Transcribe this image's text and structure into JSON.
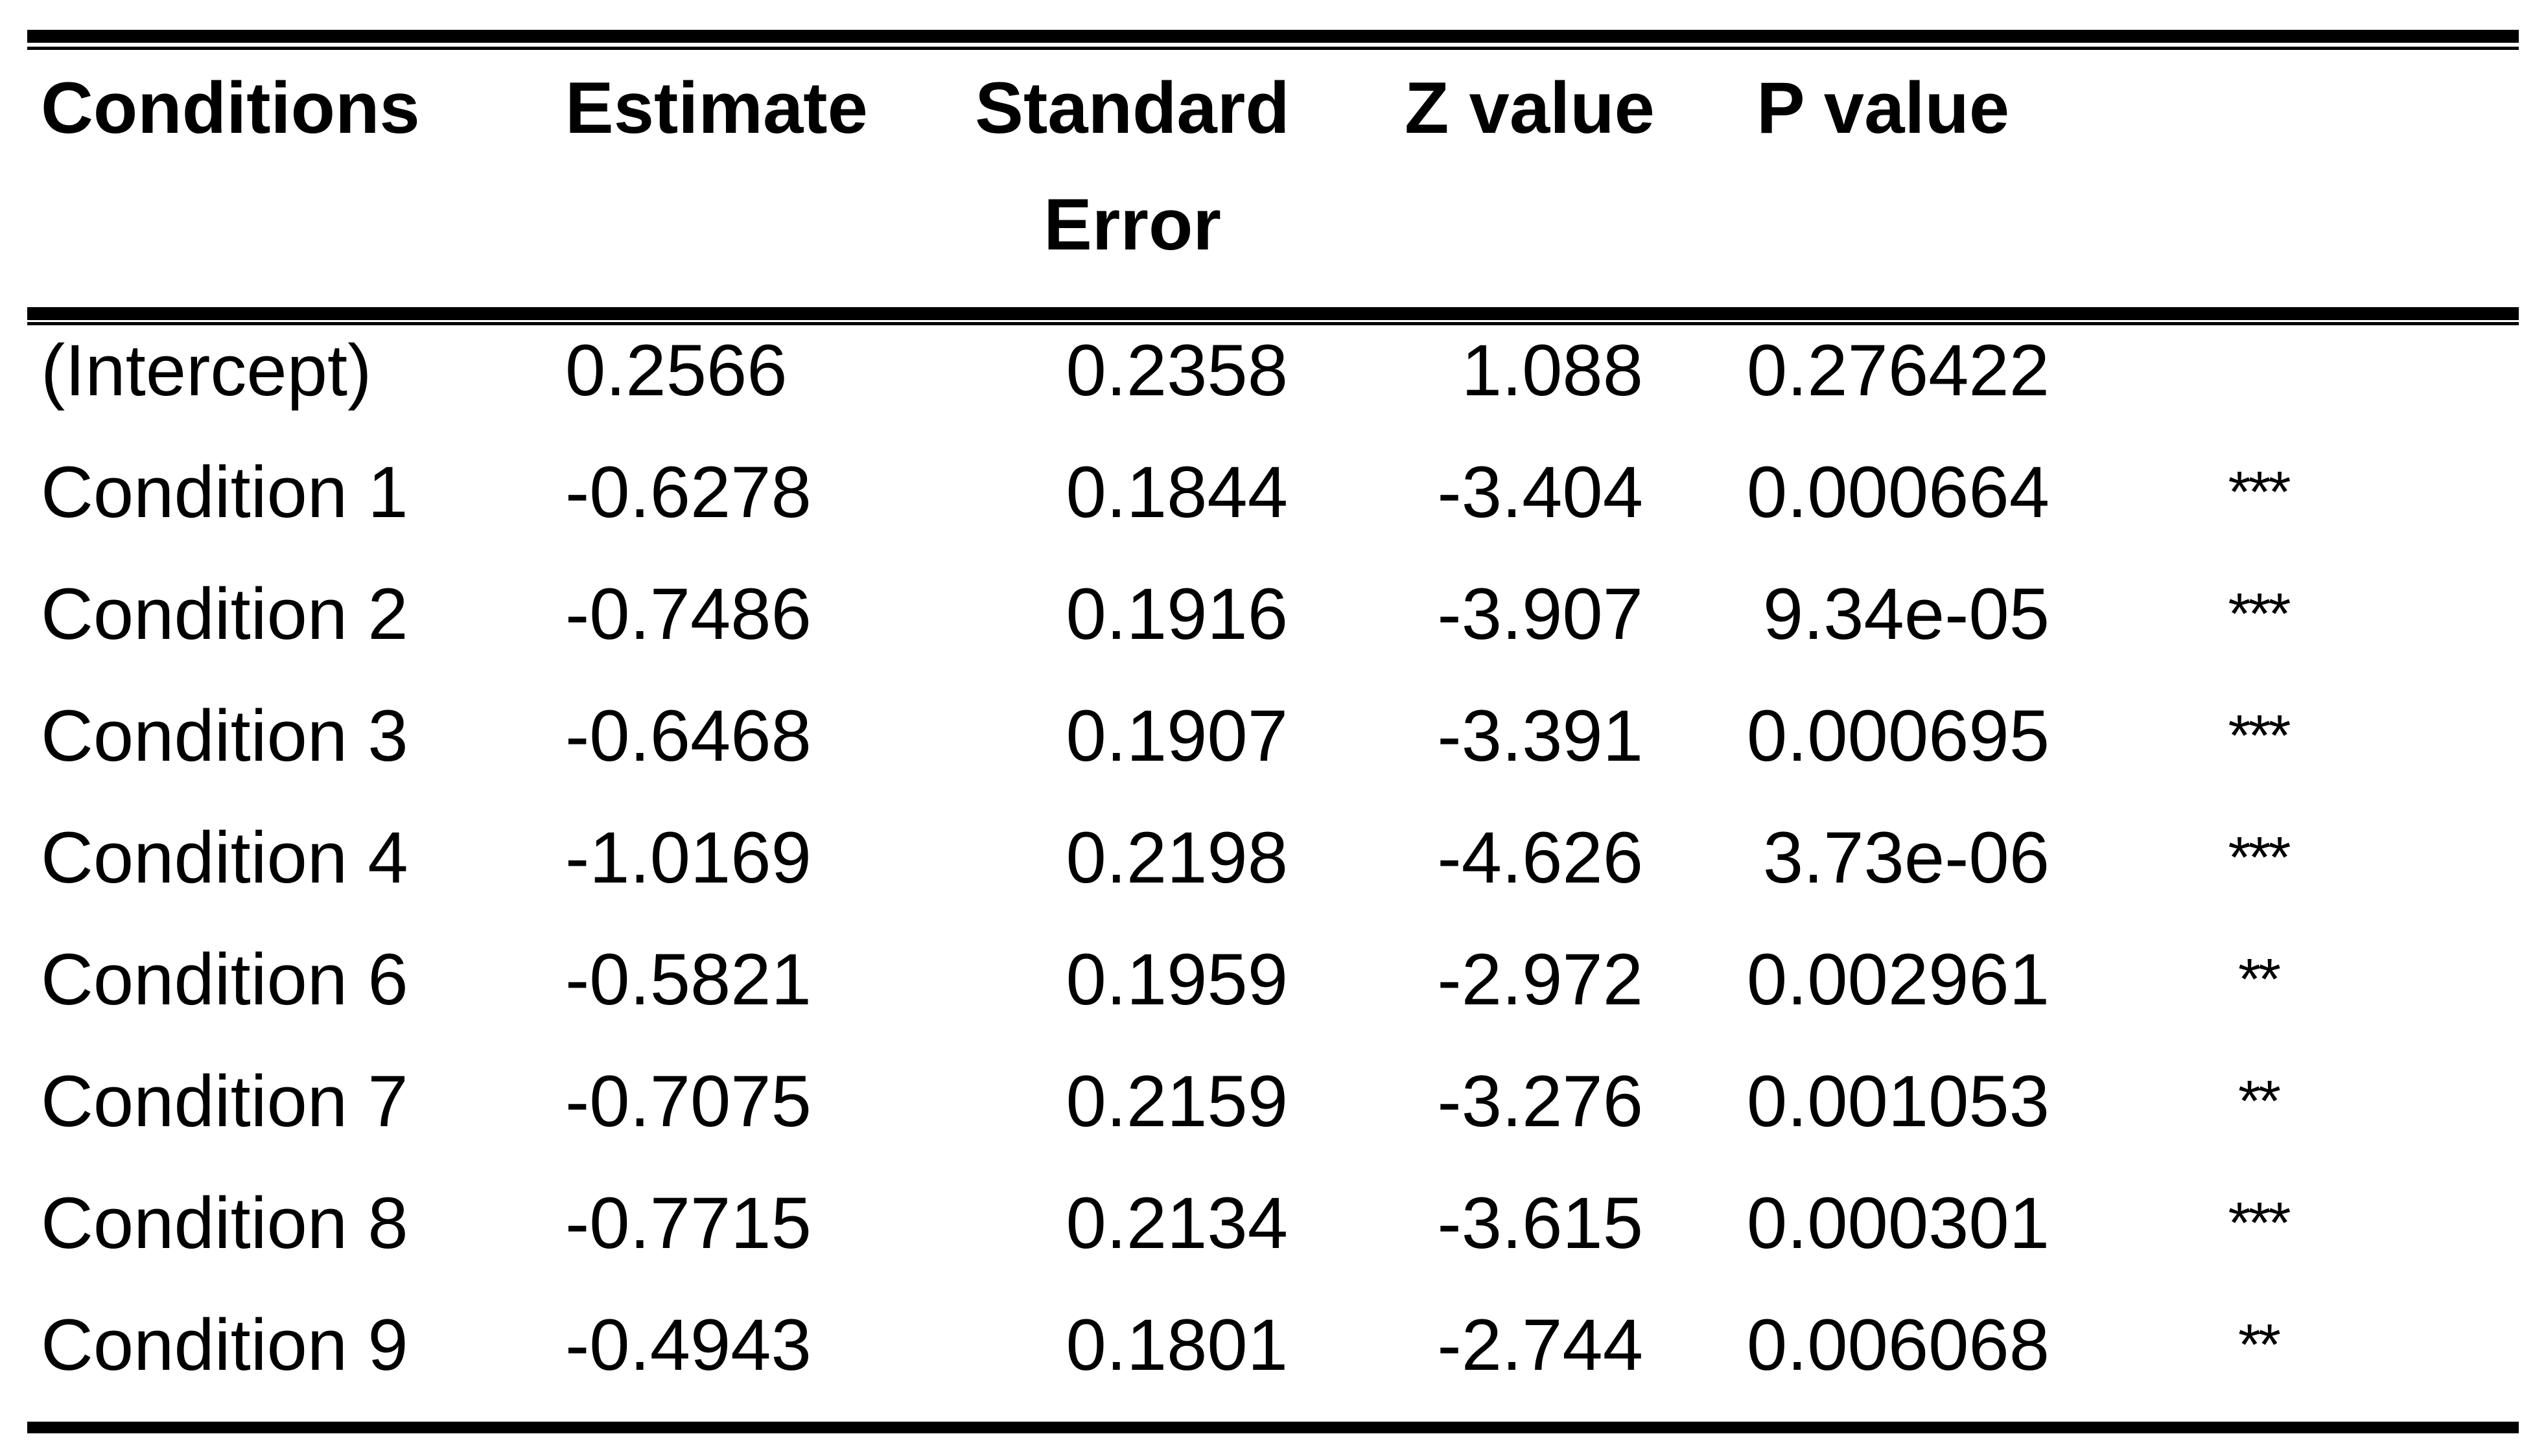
{
  "colors": {
    "background": "#ffffff",
    "text": "#000000",
    "rule": "#000000"
  },
  "header": {
    "conditions": "Conditions",
    "estimate": "Estimate",
    "standard_line1": "Standard",
    "standard_line2": "Error",
    "z_value": "Z value",
    "p_value": "P value"
  },
  "chart_data": {
    "type": "table",
    "title": "",
    "columns": [
      "Conditions",
      "Estimate",
      "Standard Error",
      "Z value",
      "P value",
      ""
    ],
    "rows": [
      [
        "(Intercept)",
        "0.2566",
        "0.2358",
        "1.088",
        "0.276422",
        ""
      ],
      [
        "Condition 1",
        "-0.6278",
        "0.1844",
        "-3.404",
        "0.000664",
        "***"
      ],
      [
        "Condition 2",
        "-0.7486",
        "0.1916",
        "-3.907",
        "9.34e-05",
        "***"
      ],
      [
        "Condition 3",
        "-0.6468",
        "0.1907",
        "-3.391",
        "0.000695",
        "***"
      ],
      [
        "Condition 4",
        "-1.0169",
        "0.2198",
        "-4.626",
        "3.73e-06",
        "***"
      ],
      [
        "Condition 6",
        "-0.5821",
        "0.1959",
        "-2.972",
        "0.002961",
        "**"
      ],
      [
        "Condition 7",
        "-0.7075",
        "0.2159",
        "-3.276",
        "0.001053",
        "**"
      ],
      [
        "Condition 8",
        "-0.7715",
        "0.2134",
        "-3.615",
        "0.000301",
        "***"
      ],
      [
        "Condition 9",
        "-0.4943",
        "0.1801",
        "-2.744",
        "0.006068",
        "**"
      ]
    ]
  }
}
